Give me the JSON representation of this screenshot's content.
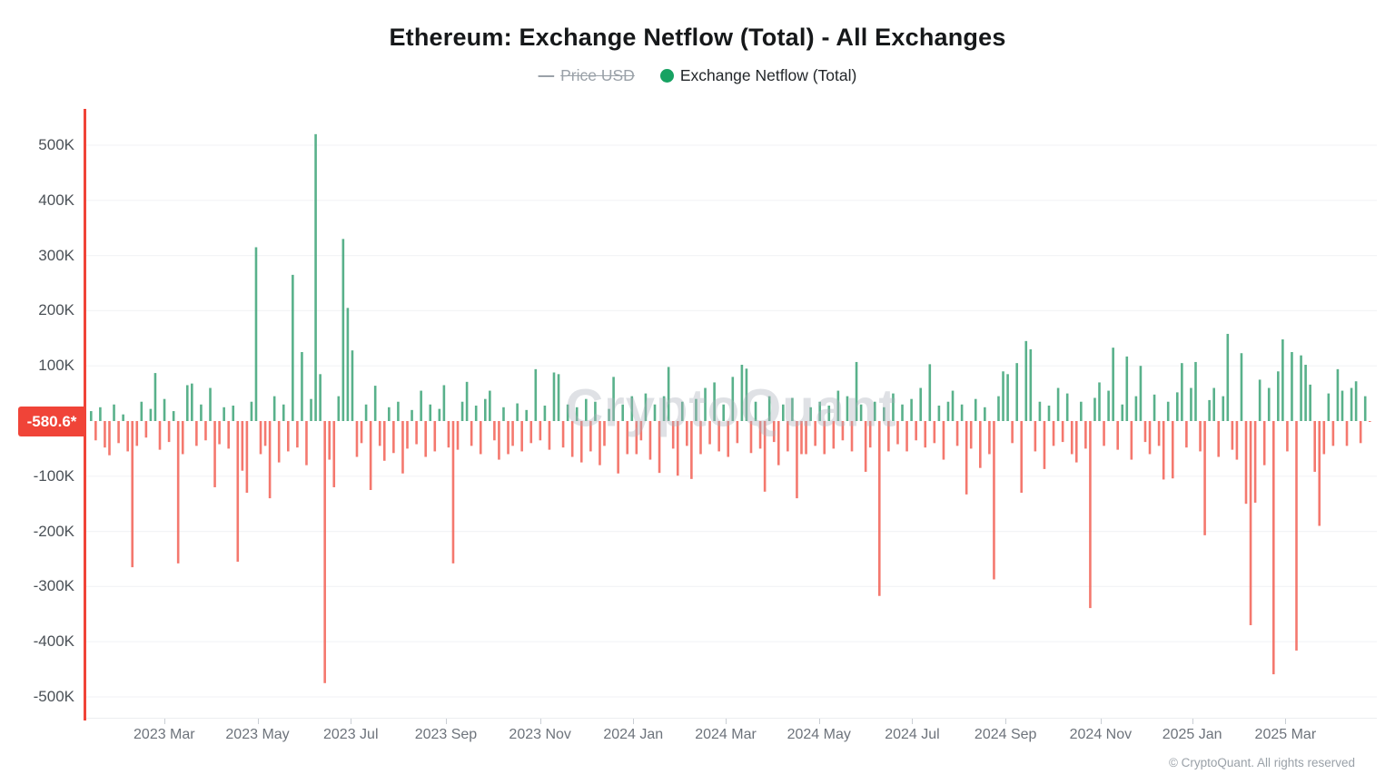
{
  "header": {
    "title": "Ethereum: Exchange Netflow (Total) - All Exchanges",
    "legend": [
      {
        "label": "Price USD",
        "state": "disabled",
        "marker": "dash",
        "color": "#9aa1a8"
      },
      {
        "label": "Exchange Netflow (Total)",
        "state": "active",
        "marker": "dot",
        "color": "#17a262"
      }
    ]
  },
  "axis_badge": {
    "text": "-580.6*",
    "color": "#f04438"
  },
  "watermark": {
    "text": "CryptoQuant"
  },
  "footer": {
    "copyright": "© CryptoQuant. All rights reserved"
  },
  "colors": {
    "positive_bar": "#47a97e",
    "negative_bar": "#f3695e",
    "axis_red": "#f04438",
    "grid": "#f3f4f6",
    "y_label": "#4b5157",
    "x_label": "#6d737b",
    "muted": "#9aa1a8"
  },
  "chart_data": {
    "type": "bar",
    "title": "Ethereum: Exchange Netflow (Total) - All Exchanges",
    "legend_entries": [
      "Price USD",
      "Exchange Netflow (Total)"
    ],
    "legend_position": "top-center",
    "grid": "horizontal-only",
    "unit": "K",
    "ylim": [
      -540,
      565
    ],
    "current_value": -580.6,
    "current_value_label": "-580.6*",
    "y_ticks": [
      {
        "label": "500K",
        "value": 500
      },
      {
        "label": "400K",
        "value": 400
      },
      {
        "label": "300K",
        "value": 300
      },
      {
        "label": "200K",
        "value": 200
      },
      {
        "label": "100K",
        "value": 100
      },
      {
        "label": "-100K",
        "value": -100
      },
      {
        "label": "-200K",
        "value": -200
      },
      {
        "label": "-300K",
        "value": -300
      },
      {
        "label": "-400K",
        "value": -400
      },
      {
        "label": "-500K",
        "value": -500
      }
    ],
    "x_ticks": [
      {
        "label": "2023 Mar",
        "f": 0.0579
      },
      {
        "label": "2023 May",
        "f": 0.1306
      },
      {
        "label": "2023 Jul",
        "f": 0.2033
      },
      {
        "label": "2023 Sep",
        "f": 0.2774
      },
      {
        "label": "2023 Nov",
        "f": 0.3508
      },
      {
        "label": "2024 Jan",
        "f": 0.4234
      },
      {
        "label": "2024 Mar",
        "f": 0.4954
      },
      {
        "label": "2024 May",
        "f": 0.5681
      },
      {
        "label": "2024 Jul",
        "f": 0.6408
      },
      {
        "label": "2024 Sep",
        "f": 0.7135
      },
      {
        "label": "2024 Nov",
        "f": 0.7876
      },
      {
        "label": "2025 Jan",
        "f": 0.8589
      },
      {
        "label": "2025 Mar",
        "f": 0.9316
      }
    ],
    "series": [
      {
        "name": "Exchange Netflow (Total)",
        "value_unit": "thousand",
        "values": [
          18,
          -35,
          25,
          -48,
          -62,
          30,
          -40,
          12,
          -55,
          -265,
          -45,
          35,
          -30,
          22,
          87,
          -52,
          40,
          -38,
          18,
          -258,
          -60,
          65,
          68,
          -45,
          30,
          -35,
          60,
          -120,
          -42,
          25,
          -50,
          28,
          -255,
          -90,
          -130,
          35,
          315,
          -60,
          -45,
          -140,
          45,
          -75,
          30,
          -55,
          265,
          -48,
          125,
          -80,
          40,
          520,
          85,
          -475,
          -70,
          -120,
          45,
          330,
          205,
          128,
          -65,
          -40,
          30,
          -125,
          64,
          -45,
          -72,
          25,
          -58,
          35,
          -95,
          -50,
          20,
          -42,
          55,
          -65,
          30,
          -55,
          22,
          65,
          -48,
          -258,
          -52,
          35,
          71,
          -45,
          28,
          -60,
          40,
          55,
          -35,
          -70,
          25,
          -60,
          -45,
          32,
          -55,
          20,
          -40,
          94,
          -35,
          28,
          -52,
          88,
          85,
          -48,
          30,
          -65,
          25,
          -75,
          40,
          -55,
          35,
          -80,
          -45,
          22,
          80,
          -95,
          30,
          -60,
          45,
          -60,
          -35,
          50,
          -70,
          30,
          -94,
          45,
          98,
          -50,
          -99,
          35,
          -45,
          -105,
          40,
          -60,
          60,
          -42,
          70,
          -55,
          30,
          -65,
          80,
          -40,
          102,
          95,
          -58,
          35,
          -50,
          -128,
          45,
          -38,
          -80,
          30,
          -55,
          42,
          -140,
          -60,
          -60,
          25,
          -45,
          35,
          -60,
          28,
          -50,
          55,
          -35,
          45,
          -55,
          107,
          30,
          -92,
          -48,
          35,
          -317,
          25,
          -55,
          50,
          -42,
          30,
          -55,
          40,
          -35,
          60,
          -48,
          103,
          -40,
          28,
          -70,
          35,
          55,
          -45,
          30,
          -133,
          -50,
          40,
          -85,
          25,
          -60,
          -287,
          45,
          90,
          85,
          -40,
          105,
          -130,
          145,
          130,
          -55,
          35,
          -87,
          28,
          -45,
          60,
          -38,
          50,
          -60,
          -75,
          35,
          -50,
          -339,
          42,
          70,
          -45,
          55,
          133,
          -52,
          30,
          117,
          -70,
          45,
          100,
          -38,
          -60,
          48,
          -45,
          -106,
          35,
          -104,
          52,
          105,
          -48,
          60,
          107,
          -55,
          -207,
          38,
          60,
          -65,
          45,
          158,
          -52,
          -70,
          123,
          -150,
          -370,
          -148,
          75,
          -80,
          60,
          -459,
          90,
          148,
          -55,
          125,
          -416,
          119,
          102,
          66,
          -92,
          -190,
          -60,
          50,
          -45,
          94,
          55,
          -45,
          60,
          72,
          -40,
          45,
          -0.6
        ]
      }
    ]
  }
}
